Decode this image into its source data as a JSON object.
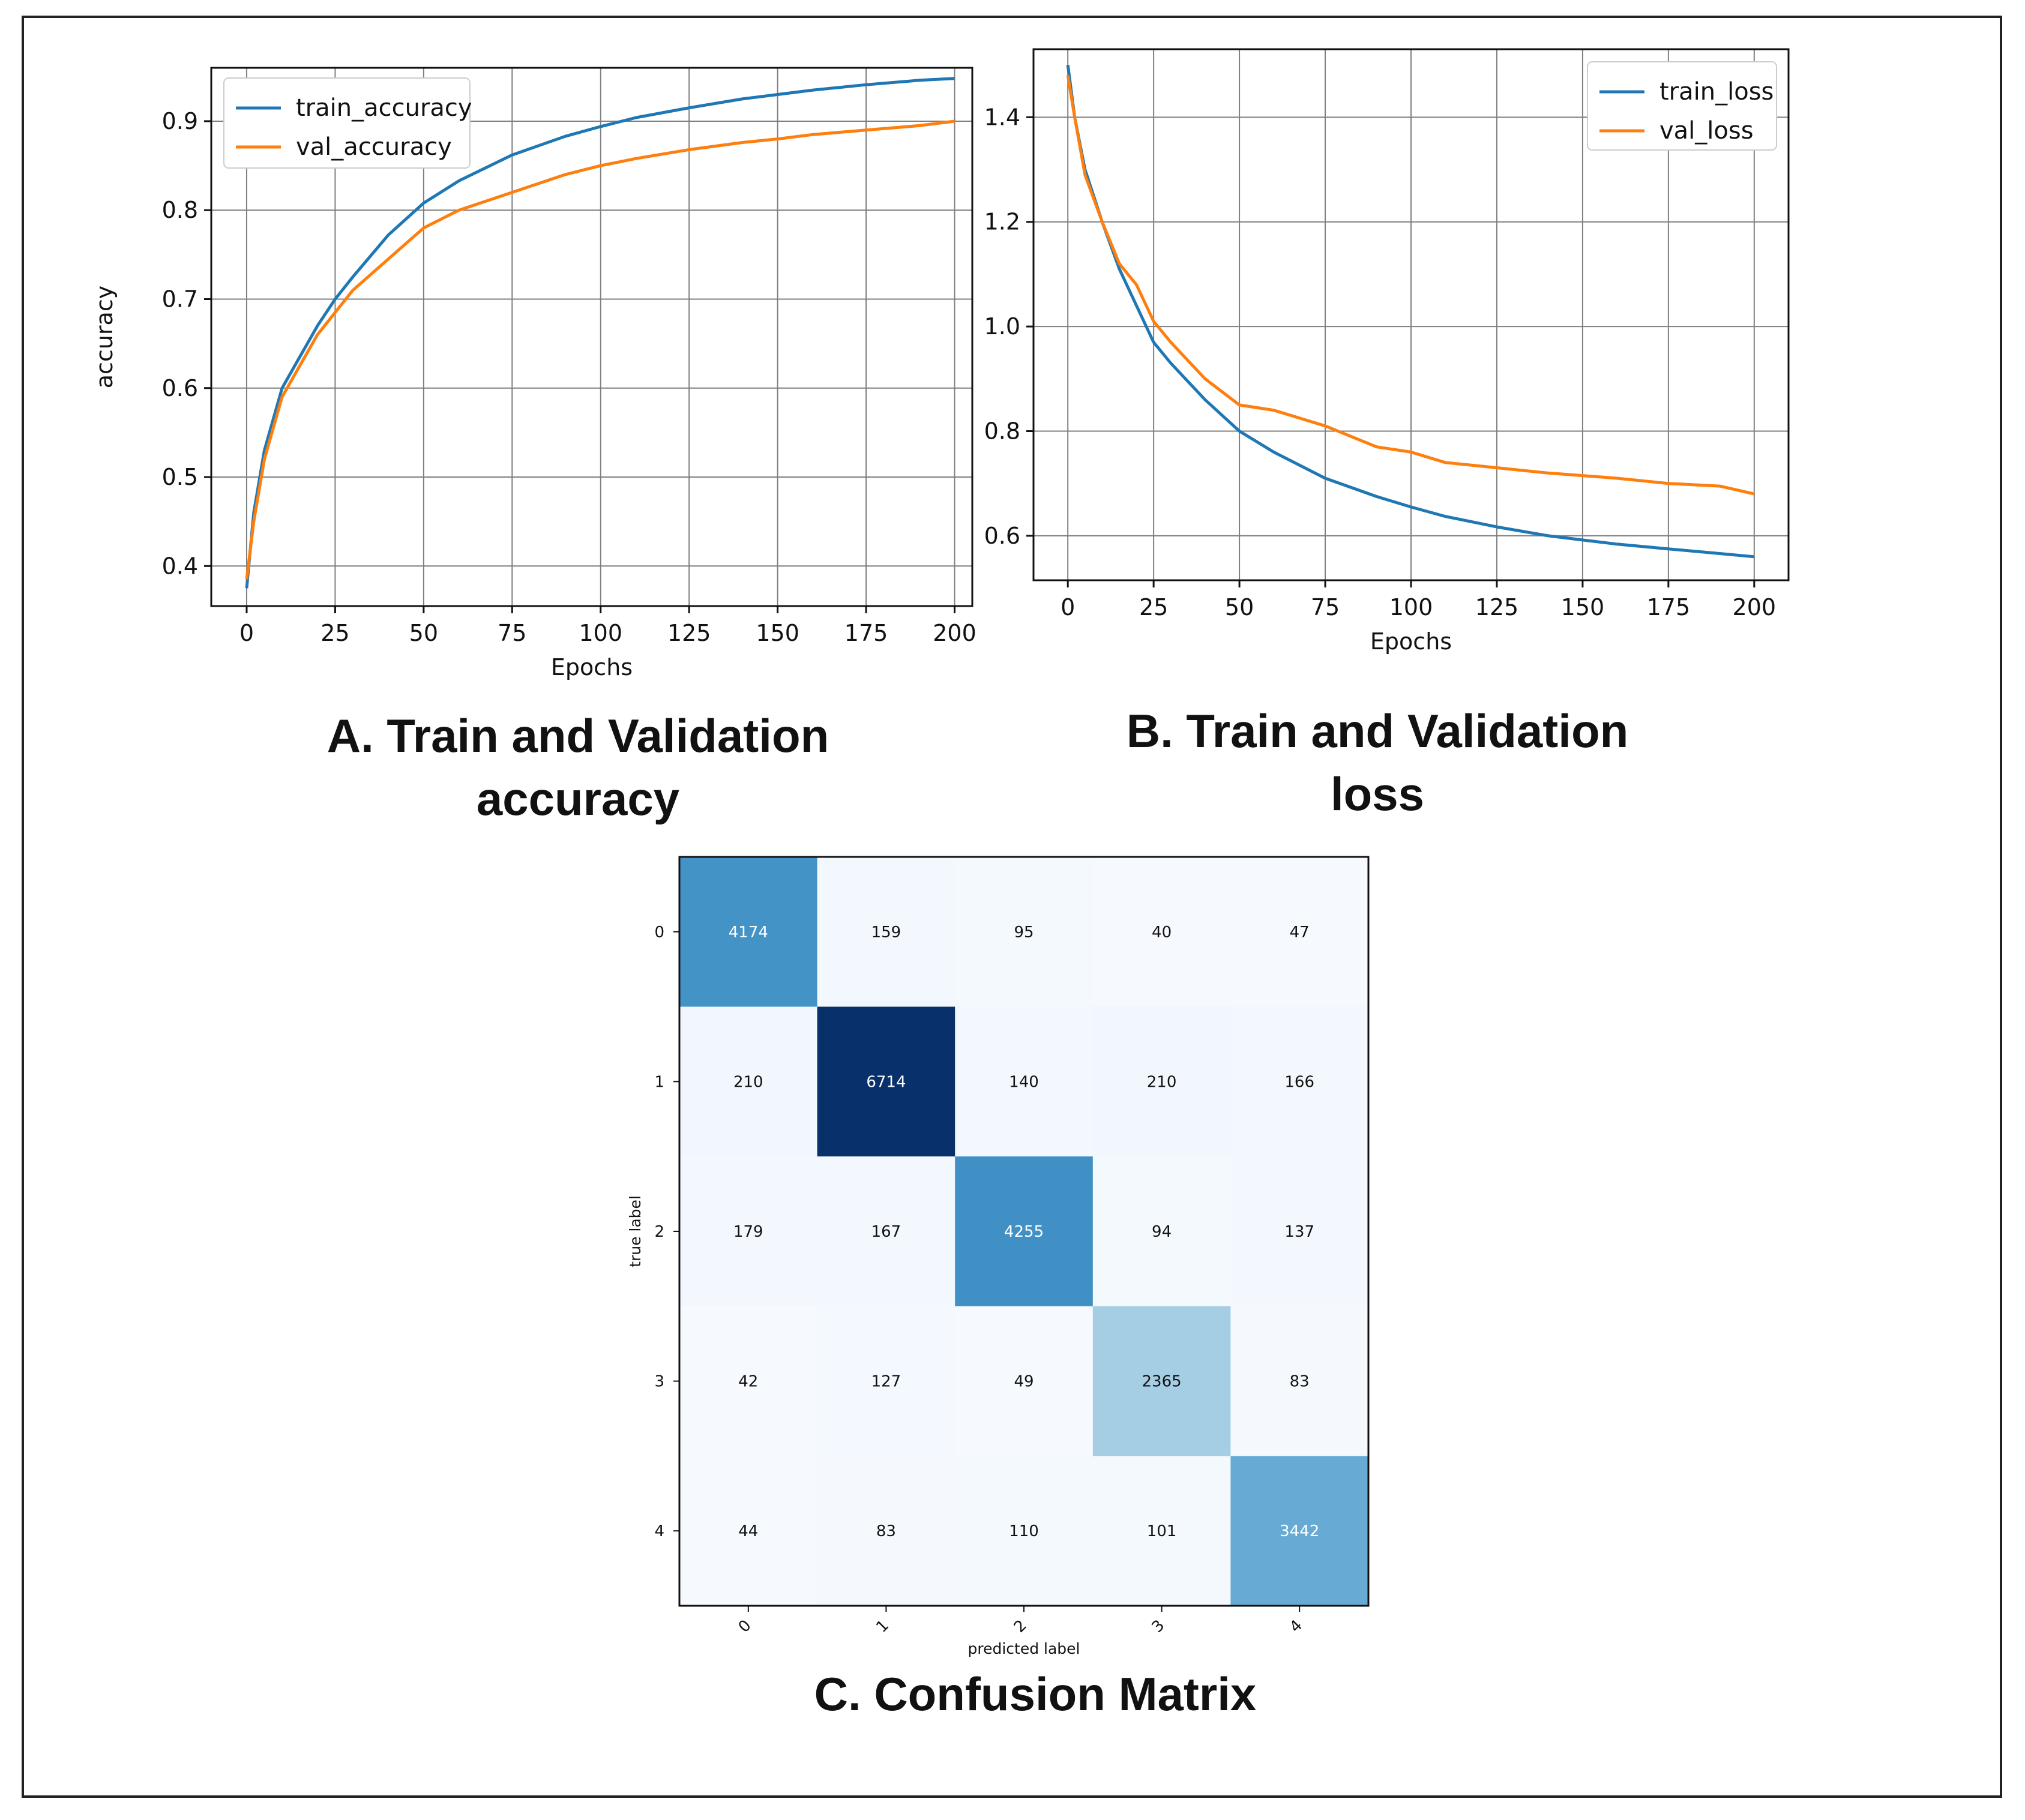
{
  "colors": {
    "train": "#1f77b4",
    "val": "#ff7f0e",
    "grid": "#7f7f7f",
    "axis": "#111111"
  },
  "chart_data": [
    {
      "id": "accuracy",
      "type": "line",
      "panel_title": [
        "A. Train and Validation",
        "accuracy"
      ],
      "xlabel": "Epochs",
      "ylabel": "accuracy",
      "xlim": [
        -10,
        205
      ],
      "ylim": [
        0.355,
        0.96
      ],
      "xticks": [
        0,
        25,
        50,
        75,
        100,
        125,
        150,
        175,
        200
      ],
      "yticks": [
        0.4,
        0.5,
        0.6,
        0.7,
        0.8,
        0.9
      ],
      "ytick_labels": [
        "0.4",
        "0.5",
        "0.6",
        "0.7",
        "0.8",
        "0.9"
      ],
      "grid": true,
      "legend": "top-left",
      "series": [
        {
          "name": "train_accuracy",
          "x": [
            0,
            2,
            5,
            10,
            15,
            20,
            25,
            30,
            40,
            50,
            60,
            75,
            90,
            100,
            110,
            125,
            140,
            150,
            160,
            175,
            190,
            200
          ],
          "y": [
            0.375,
            0.46,
            0.53,
            0.6,
            0.635,
            0.67,
            0.7,
            0.725,
            0.772,
            0.808,
            0.833,
            0.862,
            0.883,
            0.894,
            0.904,
            0.915,
            0.925,
            0.93,
            0.935,
            0.941,
            0.946,
            0.948
          ]
        },
        {
          "name": "val_accuracy",
          "x": [
            0,
            2,
            5,
            10,
            15,
            20,
            25,
            30,
            40,
            50,
            60,
            75,
            90,
            100,
            110,
            125,
            140,
            150,
            160,
            175,
            190,
            200
          ],
          "y": [
            0.385,
            0.45,
            0.52,
            0.59,
            0.625,
            0.66,
            0.685,
            0.71,
            0.745,
            0.78,
            0.8,
            0.82,
            0.84,
            0.85,
            0.858,
            0.868,
            0.876,
            0.88,
            0.885,
            0.89,
            0.895,
            0.9
          ]
        }
      ]
    },
    {
      "id": "loss",
      "type": "line",
      "panel_title": [
        "B. Train and Validation",
        "loss"
      ],
      "xlabel": "Epochs",
      "ylabel": "",
      "xlim": [
        -10,
        210
      ],
      "ylim": [
        0.515,
        1.53
      ],
      "xticks": [
        0,
        25,
        50,
        75,
        100,
        125,
        150,
        175,
        200
      ],
      "yticks": [
        0.6,
        0.8,
        1.0,
        1.2,
        1.4
      ],
      "ytick_labels": [
        "0.6",
        "0.8",
        "1.0",
        "1.2",
        "1.4"
      ],
      "grid": true,
      "legend": "top-right",
      "series": [
        {
          "name": "train_loss",
          "x": [
            0,
            2,
            5,
            10,
            15,
            20,
            25,
            30,
            40,
            50,
            60,
            75,
            90,
            100,
            110,
            125,
            140,
            150,
            160,
            175,
            190,
            200
          ],
          "y": [
            1.5,
            1.4,
            1.3,
            1.2,
            1.11,
            1.04,
            0.97,
            0.93,
            0.86,
            0.8,
            0.76,
            0.71,
            0.675,
            0.655,
            0.637,
            0.617,
            0.6,
            0.592,
            0.584,
            0.575,
            0.566,
            0.56
          ]
        },
        {
          "name": "val_loss",
          "x": [
            0,
            2,
            5,
            10,
            15,
            20,
            25,
            30,
            40,
            50,
            60,
            75,
            90,
            100,
            110,
            125,
            140,
            150,
            160,
            175,
            190,
            200
          ],
          "y": [
            1.48,
            1.4,
            1.29,
            1.2,
            1.12,
            1.08,
            1.01,
            0.97,
            0.9,
            0.85,
            0.84,
            0.81,
            0.77,
            0.76,
            0.74,
            0.73,
            0.72,
            0.715,
            0.71,
            0.7,
            0.695,
            0.68
          ]
        }
      ]
    },
    {
      "id": "confusion",
      "type": "heatmap",
      "panel_title": [
        "C. Confusion Matrix"
      ],
      "xlabel": "predicted label",
      "ylabel": "true label",
      "labels": [
        "0",
        "1",
        "2",
        "3",
        "4"
      ],
      "matrix": [
        [
          4174,
          159,
          95,
          40,
          47
        ],
        [
          210,
          6714,
          140,
          210,
          166
        ],
        [
          179,
          167,
          4255,
          94,
          137
        ],
        [
          42,
          127,
          49,
          2365,
          83
        ],
        [
          44,
          83,
          110,
          101,
          3442
        ]
      ],
      "colormap": "Blues"
    }
  ]
}
